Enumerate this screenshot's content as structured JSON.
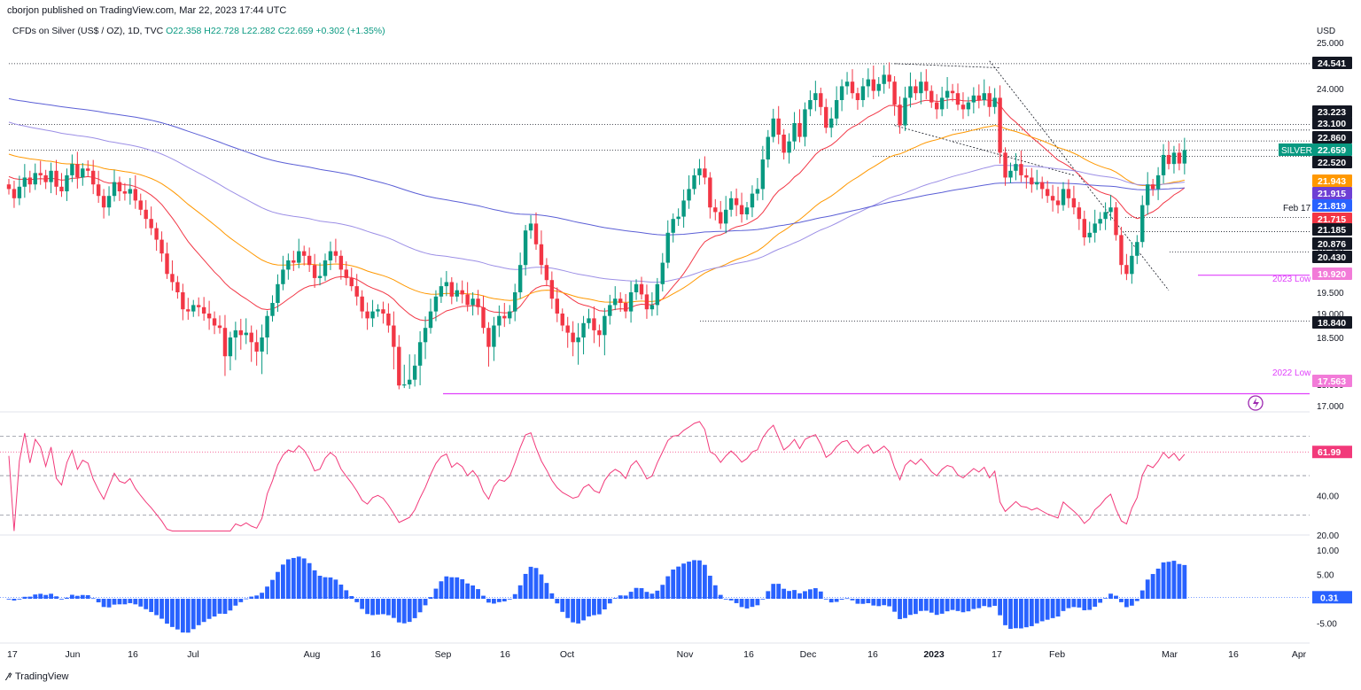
{
  "header": {
    "published": "cborjon published on TradingView.com, Mar 22, 2023 17:44 UTC",
    "symbol": "CFDs on Silver (US$ / OZ), 1D, TVC",
    "ohlc": "O22.358 H22.728 L22.282 C22.659 +0.302 (+1.35%)"
  },
  "footer": {
    "brand": "TradingView",
    "logo": "tradingview-logo-icon"
  },
  "colors": {
    "up": "#089981",
    "down": "#f23645",
    "ema20": "#f23645",
    "ema50": "#ff9800",
    "ema100": "#9c8fe6",
    "ema200": "#5b5fd6",
    "rsi": "#f2397a",
    "macd": "#2962ff",
    "pink": "#e040fb"
  },
  "chart_data": [
    {
      "type": "candlestick",
      "currency": "USD",
      "y_ticks": [
        "25.000",
        "24.000",
        "23.500",
        "23.000",
        "22.500",
        "22.000",
        "21.500",
        "21.000",
        "20.500",
        "20.000",
        "19.500",
        "19.000",
        "18.500",
        "18.000",
        "17.000"
      ],
      "ylim": [
        17.0,
        25.0
      ],
      "x_ticks": [
        "17",
        "Jun",
        "16",
        "Jul",
        "Aug",
        "16",
        "Sep",
        "16",
        "Oct",
        "Nov",
        "16",
        "Dec",
        "16",
        "2023",
        "17",
        "Feb",
        "Mar",
        "16",
        "Apr"
      ],
      "closes": [
        21.8,
        21.6,
        21.85,
        22.05,
        21.9,
        22.15,
        22.1,
        21.95,
        22.2,
        21.85,
        21.75,
        22.1,
        22.35,
        22.05,
        22.25,
        22.2,
        21.9,
        21.65,
        21.4,
        21.65,
        21.95,
        21.75,
        21.7,
        21.8,
        21.55,
        21.35,
        21.15,
        20.95,
        20.7,
        20.4,
        19.95,
        19.75,
        19.5,
        19.1,
        19.05,
        19.2,
        19.15,
        19.0,
        18.9,
        18.75,
        18.7,
        18.3,
        18.5,
        18.65,
        18.55,
        18.6,
        18.45,
        18.35,
        18.5,
        18.95,
        19.25,
        19.7,
        20.05,
        20.25,
        20.2,
        20.45,
        20.35,
        20.15,
        19.85,
        19.9,
        20.25,
        20.45,
        20.35,
        20.05,
        19.85,
        19.65,
        19.4,
        19.05,
        18.9,
        19.05,
        19.1,
        19.0,
        18.75,
        18.4,
        17.95,
        18.0,
        18.05,
        18.2,
        18.45,
        18.7,
        19.05,
        19.4,
        19.65,
        19.75,
        19.4,
        19.55,
        19.45,
        19.2,
        19.35,
        19.15,
        18.7,
        18.4,
        18.75,
        18.95,
        18.9,
        19.05,
        19.5,
        20.15,
        20.9,
        21.05,
        20.6,
        20.15,
        19.8,
        19.35,
        19.0,
        18.75,
        18.6,
        18.45,
        18.5,
        18.8,
        18.9,
        18.65,
        18.55,
        18.95,
        19.2,
        19.35,
        19.25,
        19.05,
        19.5,
        19.7,
        19.45,
        19.1,
        19.2,
        19.7,
        20.2,
        20.85,
        21.15,
        21.2,
        21.55,
        21.8,
        22.1,
        22.25,
        22.05,
        21.4,
        21.3,
        21.05,
        21.35,
        21.6,
        21.45,
        21.25,
        21.4,
        21.7,
        21.8,
        22.45,
        22.95,
        23.35,
        23.0,
        22.6,
        22.85,
        23.25,
        22.95,
        23.55,
        23.75,
        23.9,
        23.6,
        23.15,
        23.35,
        23.75,
        24.05,
        24.15,
        23.9,
        23.75,
        24.05,
        24.2,
        23.95,
        24.1,
        24.3,
        24.15,
        23.65,
        23.2,
        23.8,
        24.05,
        23.9,
        24.15,
        23.95,
        23.7,
        23.55,
        23.8,
        23.95,
        23.9,
        23.65,
        23.55,
        23.7,
        23.85,
        23.75,
        23.9,
        23.6,
        23.8,
        22.6,
        22.05,
        22.2,
        22.35,
        22.1,
        22.05,
        21.9,
        21.95,
        21.8,
        21.65,
        21.55,
        21.45,
        21.8,
        21.6,
        21.4,
        21.15,
        20.75,
        20.85,
        21.05,
        21.15,
        21.3,
        21.4,
        20.8,
        20.15,
        19.95,
        20.35,
        20.65,
        21.45,
        21.9,
        21.8,
        22.1,
        22.55,
        22.35,
        22.6,
        22.36,
        22.66
      ],
      "ema20_last": 21.715,
      "ema50_last": 21.943,
      "ema100_last": 21.915,
      "ema200_last": 21.819,
      "price_labels": [
        {
          "value": "24.541",
          "style": "black"
        },
        {
          "value": "23.223",
          "style": "black"
        },
        {
          "value": "23.100",
          "style": "black"
        },
        {
          "value": "22.860",
          "style": "black"
        },
        {
          "value": "22.659",
          "style": "green",
          "name": "SILVER"
        },
        {
          "value": "22.520",
          "style": "black"
        },
        {
          "value": "21.943",
          "style": "orange"
        },
        {
          "value": "21.915",
          "style": "purple"
        },
        {
          "value": "21.819",
          "style": "blue"
        },
        {
          "value": "21.715",
          "style": "red"
        },
        {
          "value": "21.185",
          "style": "black"
        },
        {
          "value": "20.876",
          "style": "black"
        },
        {
          "value": "20.430",
          "style": "black"
        },
        {
          "value": "19.920",
          "style": "pink"
        },
        {
          "value": "18.840",
          "style": "black"
        },
        {
          "value": "17.563",
          "style": "pink"
        }
      ],
      "annotations": [
        {
          "text": "Feb 17",
          "price": 21.8
        },
        {
          "text": "2023 Low",
          "price": 19.8
        },
        {
          "text": "2022 Low",
          "price": 17.75
        }
      ],
      "horizontal_levels": [
        24.541,
        23.223,
        23.1,
        22.86,
        22.659,
        22.52,
        21.185,
        20.876,
        20.43,
        19.92,
        18.84,
        17.563
      ],
      "trendlines": [
        {
          "from": [
            168,
            24.541
          ],
          "to": [
            188,
            24.45
          ]
        },
        {
          "from": [
            168,
            23.2
          ],
          "to": [
            202,
            22.1
          ]
        },
        {
          "from": [
            186,
            24.6
          ],
          "to": [
            220,
            19.55
          ]
        }
      ]
    },
    {
      "type": "line",
      "name": "RSI",
      "y_ticks": [
        "40.00",
        "20.00"
      ],
      "ylim": [
        20,
        80
      ],
      "levels": [
        70,
        50,
        30
      ],
      "last_value": "61.99"
    },
    {
      "type": "bar",
      "name": "MACD histogram",
      "y_ticks": [
        "10.00",
        "5.00",
        "-5.00"
      ],
      "ylim": [
        -8,
        12
      ],
      "last_value": "0.31"
    }
  ]
}
